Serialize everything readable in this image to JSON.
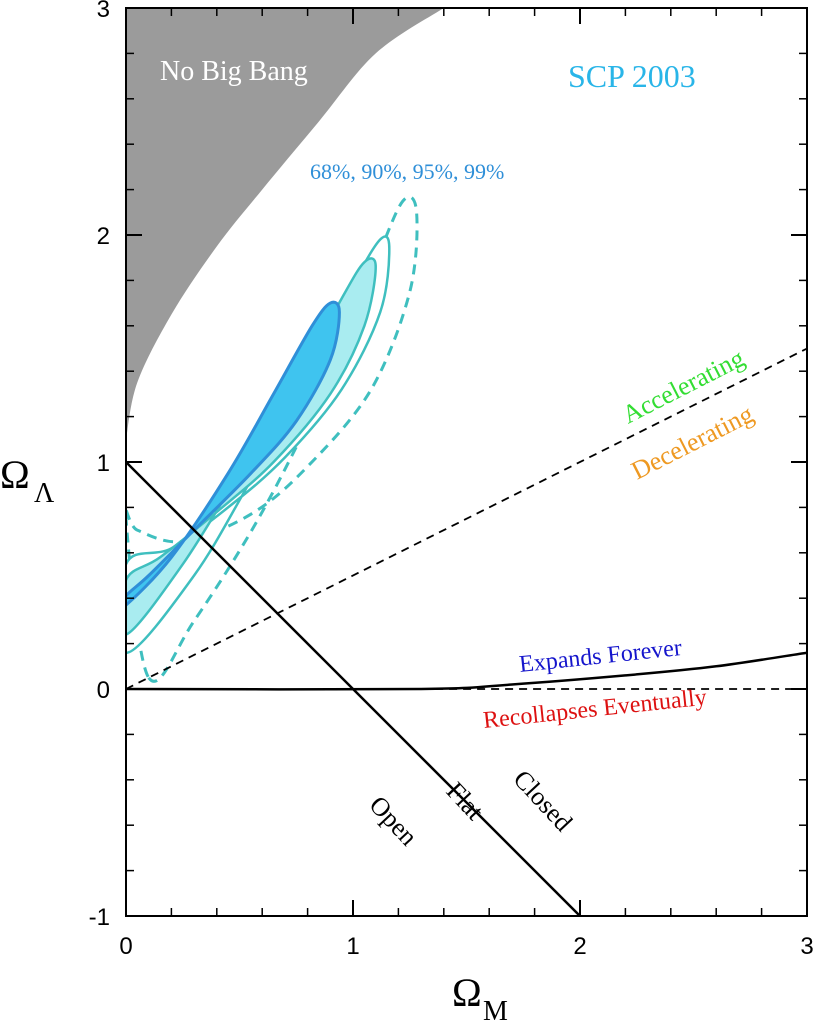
{
  "chart_data": {
    "type": "scatter",
    "title": "SCP 2003",
    "xlabel": "Ω",
    "xlabel_sub": "M",
    "ylabel": "Ω",
    "ylabel_sub": "Λ",
    "xlim": [
      0,
      3
    ],
    "ylim": [
      -1,
      3
    ],
    "x_ticks": [
      "0",
      "1",
      "2",
      "3"
    ],
    "y_ticks": [
      "-1",
      "0",
      "1",
      "2",
      "3"
    ],
    "grid": false,
    "confidence_levels_label": "68%, 90%, 95%, 99%",
    "confidence_contours": [
      {
        "level": "68%",
        "style": "filled",
        "center": [
          0.45,
          1.03
        ],
        "polygon": [
          [
            0.0,
            0.37
          ],
          [
            0.2,
            0.58
          ],
          [
            0.45,
            0.95
          ],
          [
            0.65,
            1.3
          ],
          [
            0.82,
            1.6
          ],
          [
            0.9,
            1.7
          ],
          [
            0.94,
            1.66
          ],
          [
            0.9,
            1.45
          ],
          [
            0.75,
            1.18
          ],
          [
            0.55,
            0.95
          ],
          [
            0.3,
            0.7
          ],
          [
            0.1,
            0.5
          ],
          [
            0.0,
            0.41
          ]
        ]
      },
      {
        "level": "90%",
        "style": "filled",
        "center": [
          0.5,
          1.1
        ],
        "polygon": [
          [
            0.0,
            0.24
          ],
          [
            0.25,
            0.55
          ],
          [
            0.5,
            0.95
          ],
          [
            0.75,
            1.35
          ],
          [
            0.95,
            1.72
          ],
          [
            1.05,
            1.88
          ],
          [
            1.1,
            1.86
          ],
          [
            1.05,
            1.6
          ],
          [
            0.9,
            1.3
          ],
          [
            0.65,
            1.0
          ],
          [
            0.4,
            0.78
          ],
          [
            0.15,
            0.58
          ],
          [
            0.0,
            0.48
          ]
        ]
      },
      {
        "level": "95%",
        "style": "solid",
        "center": [
          0.55,
          1.15
        ],
        "polygon": [
          [
            0.0,
            0.16
          ],
          [
            0.3,
            0.5
          ],
          [
            0.55,
            0.92
          ],
          [
            0.8,
            1.36
          ],
          [
            1.0,
            1.78
          ],
          [
            1.12,
            1.98
          ],
          [
            1.16,
            1.94
          ],
          [
            1.12,
            1.66
          ],
          [
            0.95,
            1.32
          ],
          [
            0.7,
            1.02
          ],
          [
            0.45,
            0.8
          ],
          [
            0.2,
            0.62
          ],
          [
            0.0,
            0.55
          ]
        ]
      },
      {
        "level": "99%",
        "style": "dashed",
        "center": [
          0.62,
          1.2
        ],
        "polygon": [
          [
            0.1,
            0.05
          ],
          [
            0.3,
            0.3
          ],
          [
            0.6,
            0.78
          ],
          [
            0.9,
            1.38
          ],
          [
            1.1,
            1.88
          ],
          [
            1.22,
            2.15
          ],
          [
            1.28,
            2.1
          ],
          [
            1.25,
            1.75
          ],
          [
            1.08,
            1.32
          ],
          [
            0.8,
            0.98
          ],
          [
            0.55,
            0.77
          ],
          [
            0.25,
            0.65
          ],
          [
            0.05,
            0.7
          ],
          [
            0.0,
            0.75
          ]
        ]
      }
    ],
    "no_big_bang_boundary": [
      [
        0.0,
        1.1
      ],
      [
        0.05,
        1.35
      ],
      [
        0.2,
        1.65
      ],
      [
        0.4,
        1.95
      ],
      [
        0.6,
        2.2
      ],
      [
        0.85,
        2.5
      ],
      [
        1.1,
        2.8
      ],
      [
        1.4,
        3.0
      ]
    ],
    "lines": [
      {
        "name": "flat",
        "style": "solid",
        "points": [
          [
            0,
            1
          ],
          [
            2,
            -1
          ]
        ]
      },
      {
        "name": "accelerating-decelerating",
        "style": "dashed",
        "points": [
          [
            0,
            0
          ],
          [
            3,
            1.5
          ]
        ]
      },
      {
        "name": "expands-forever",
        "style": "solid",
        "points": [
          [
            0,
            0
          ],
          [
            1.3,
            0
          ],
          [
            1.7,
            0.02
          ],
          [
            2.2,
            0.06
          ],
          [
            2.6,
            0.1
          ],
          [
            3.0,
            0.16
          ]
        ]
      },
      {
        "name": "recollapses-eventually",
        "style": "dashed",
        "points": [
          [
            1.3,
            0
          ],
          [
            3.0,
            0
          ]
        ]
      }
    ],
    "annotations": {
      "no_big_bang": "No Big Bang",
      "accelerating": "Accelerating",
      "decelerating": "Decelerating",
      "expands_forever": "Expands Forever",
      "recollapses_eventually": "Recollapses Eventually",
      "open": "Open",
      "flat": "Flat",
      "closed": "Closed"
    },
    "colors": {
      "no_big_bang": "#9b9b9b",
      "c68_fill": "#3fc4ef",
      "c68_stroke": "#2f8fd8",
      "c90_fill": "#a9ecf0",
      "contour_stroke": "#3fbfbf",
      "title": "#29b5e8",
      "levels_label": "#2f8fd8",
      "accelerating": "#33dd33",
      "decelerating": "#ee9922",
      "expands_forever": "#1515cc",
      "recollapses_eventually": "#dd1111"
    }
  }
}
